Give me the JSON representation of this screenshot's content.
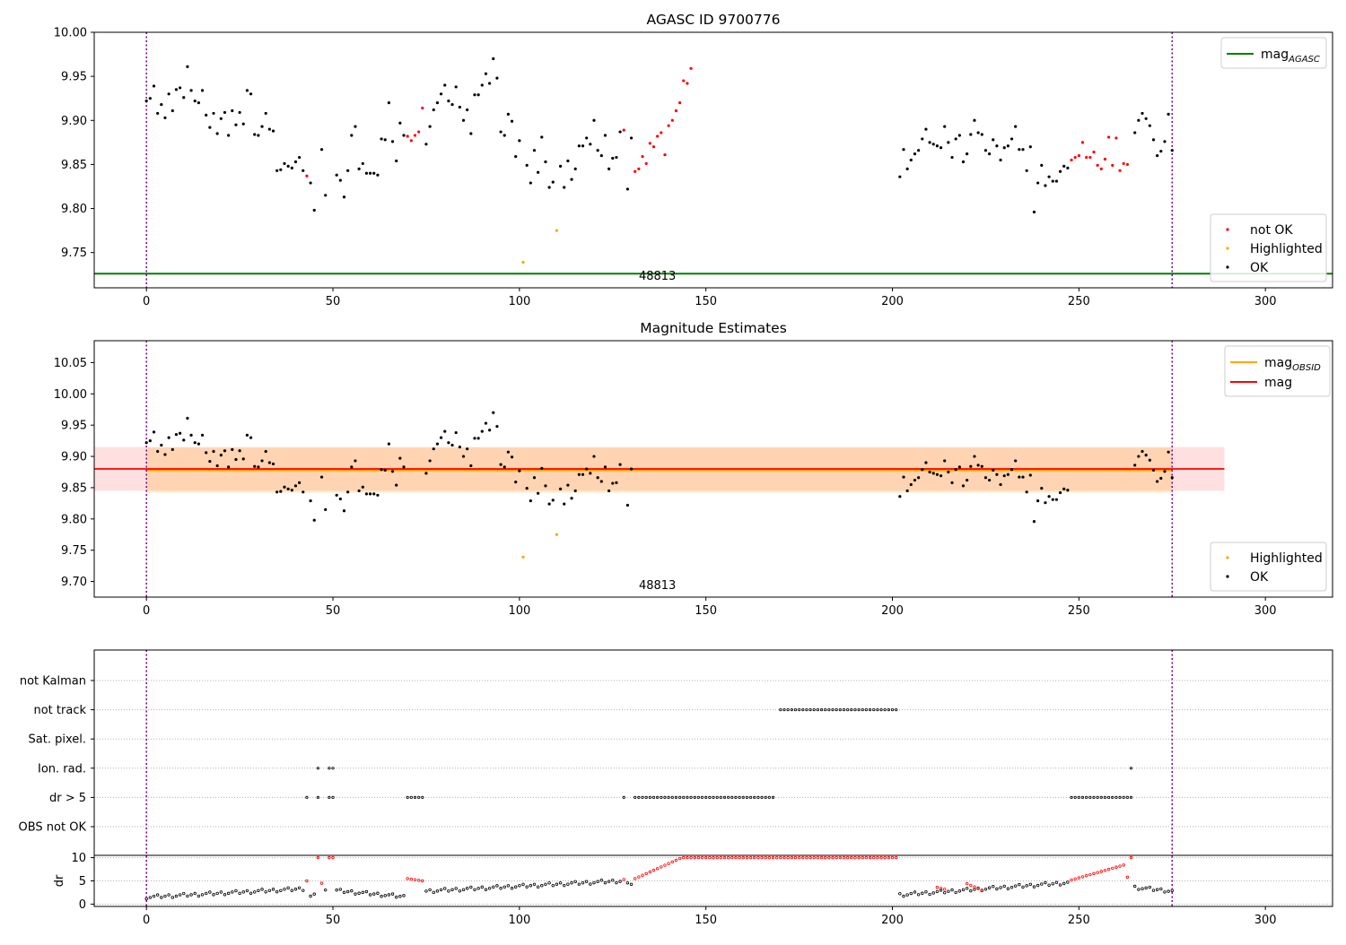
{
  "colors": {
    "ok": "#000000",
    "not_ok": "#ff0000",
    "highlighted": "#ffa500",
    "mag_agasc": "#008000",
    "mag": "#ff0000",
    "mag_obsid": "#ffa500",
    "obsid_boundary": "#800080",
    "band_red": "#ffc0cb",
    "band_orange": "#ffd0b0"
  },
  "chart_data": [
    {
      "type": "scatter",
      "title": "AGASC ID 9700776",
      "xlim": [
        -14,
        318
      ],
      "ylim": [
        9.71,
        10.0
      ],
      "x_ticks": [
        0,
        50,
        100,
        150,
        200,
        250,
        300
      ],
      "y_ticks": [
        9.75,
        9.8,
        9.85,
        9.9,
        9.95,
        10.0
      ],
      "y_tick_labels": [
        "9.75",
        "9.80",
        "9.85",
        "9.90",
        "9.95",
        "10.00"
      ],
      "legend_lines": [
        {
          "label": "mag",
          "sub": "AGASC",
          "color": "#008000"
        }
      ],
      "legend_points": [
        {
          "label": "not OK",
          "color": "#ff0000"
        },
        {
          "label": "Highlighted",
          "color": "#ffa500"
        },
        {
          "label": "OK",
          "color": "#000000"
        }
      ],
      "obsid_label": "48813",
      "obsid_label_x": 137,
      "obsid_bounds": [
        0,
        275
      ],
      "mag_agasc": 9.726,
      "series": [
        {
          "name": "OK",
          "x": [
            0,
            1,
            2,
            3,
            4,
            5,
            6,
            7,
            8,
            9,
            10,
            11,
            12,
            13,
            14,
            15,
            16,
            17,
            18,
            19,
            20,
            21,
            22,
            23,
            24,
            25,
            26,
            27,
            28,
            29,
            30,
            31,
            32,
            33,
            34,
            35,
            36,
            37,
            38,
            39,
            40,
            41,
            42,
            44,
            45,
            47,
            48,
            51,
            52,
            53,
            54,
            55,
            56,
            57,
            58,
            59,
            60,
            61,
            62,
            63,
            64,
            65,
            66,
            67,
            68,
            69,
            75,
            76,
            77,
            78,
            79,
            80,
            81,
            82,
            83,
            84,
            85,
            86,
            87,
            88,
            89,
            90,
            91,
            92,
            93,
            94,
            95,
            96,
            97,
            98,
            99,
            100,
            102,
            103,
            104,
            105,
            106,
            107,
            108,
            109,
            111,
            112,
            113,
            114,
            115,
            116,
            117,
            118,
            119,
            120,
            121,
            122,
            123,
            124,
            125,
            126,
            127,
            129,
            130,
            202,
            203,
            204,
            205,
            206,
            207,
            208,
            209,
            210,
            211,
            212,
            213,
            214,
            215,
            216,
            217,
            218,
            219,
            220,
            221,
            222,
            223,
            224,
            225,
            226,
            227,
            228,
            229,
            230,
            231,
            232,
            233,
            234,
            235,
            236,
            237,
            238,
            239,
            240,
            241,
            242,
            243,
            244,
            245,
            246,
            247,
            265,
            266,
            267,
            268,
            269,
            270,
            271,
            272,
            273,
            274,
            275
          ],
          "y": [
            9.922,
            9.925,
            9.939,
            9.908,
            9.918,
            9.903,
            9.93,
            9.911,
            9.935,
            9.937,
            9.926,
            9.961,
            9.934,
            9.922,
            9.92,
            9.934,
            9.906,
            9.892,
            9.908,
            9.885,
            9.902,
            9.909,
            9.883,
            9.911,
            9.895,
            9.909,
            9.896,
            9.934,
            9.93,
            9.884,
            9.883,
            9.893,
            9.908,
            9.89,
            9.888,
            9.843,
            9.844,
            9.851,
            9.848,
            9.846,
            9.853,
            9.858,
            9.843,
            9.829,
            9.798,
            9.867,
            9.815,
            9.838,
            9.832,
            9.813,
            9.843,
            9.883,
            9.893,
            9.845,
            9.851,
            9.84,
            9.84,
            9.84,
            9.838,
            9.879,
            9.878,
            9.92,
            9.876,
            9.854,
            9.897,
            9.883,
            9.873,
            9.893,
            9.912,
            9.92,
            9.93,
            9.94,
            9.922,
            9.918,
            9.938,
            9.915,
            9.9,
            9.912,
            9.885,
            9.929,
            9.929,
            9.94,
            9.953,
            9.942,
            9.97,
            9.948,
            9.887,
            9.883,
            9.907,
            9.899,
            9.859,
            9.877,
            9.849,
            9.829,
            9.866,
            9.841,
            9.881,
            9.853,
            9.824,
            9.83,
            9.848,
            9.824,
            9.854,
            9.833,
            9.845,
            9.871,
            9.871,
            9.88,
            9.873,
            9.9,
            9.866,
            9.86,
            9.883,
            9.845,
            9.857,
            9.858,
            9.887,
            9.822,
            9.88,
            9.836,
            9.867,
            9.845,
            9.855,
            9.862,
            9.866,
            9.879,
            9.89,
            9.875,
            9.873,
            9.871,
            9.869,
            9.893,
            9.875,
            9.858,
            9.879,
            9.883,
            9.853,
            9.862,
            9.884,
            9.9,
            9.886,
            9.884,
            9.866,
            9.862,
            9.878,
            9.871,
            9.855,
            9.869,
            9.871,
            9.879,
            9.893,
            9.867,
            9.867,
            9.843,
            9.87,
            9.796,
            9.829,
            9.849,
            9.826,
            9.836,
            9.831,
            9.831,
            9.842,
            9.848,
            9.846,
            9.886,
            9.9,
            9.908,
            9.902,
            9.894,
            9.878,
            9.86,
            9.865,
            9.876,
            9.907,
            9.866
          ]
        },
        {
          "name": "not OK",
          "x": [
            43,
            70,
            71,
            72,
            73,
            74,
            128,
            131,
            132,
            133,
            134,
            135,
            136,
            137,
            138,
            139,
            140,
            141,
            142,
            143,
            144,
            145,
            146,
            248,
            249,
            250,
            251,
            252,
            253,
            254,
            255,
            256,
            257,
            258,
            259,
            260,
            261,
            262,
            263
          ],
          "y": [
            9.837,
            9.882,
            9.877,
            9.883,
            9.887,
            9.914,
            9.889,
            9.842,
            9.845,
            9.859,
            9.851,
            9.874,
            9.87,
            9.882,
            9.886,
            9.861,
            9.894,
            9.9,
            9.911,
            9.92,
            9.945,
            9.942,
            9.959,
            9.855,
            9.858,
            9.86,
            9.875,
            9.858,
            9.858,
            9.864,
            9.849,
            9.845,
            9.856,
            9.881,
            9.849,
            9.88,
            9.843,
            9.851,
            9.85
          ]
        },
        {
          "name": "Highlighted",
          "x": [
            101,
            110
          ],
          "y": [
            9.739,
            9.775
          ]
        }
      ]
    },
    {
      "type": "scatter",
      "title": "Magnitude Estimates",
      "xlim": [
        -14,
        318
      ],
      "ylim": [
        9.675,
        10.085
      ],
      "x_ticks": [
        0,
        50,
        100,
        150,
        200,
        250,
        300
      ],
      "y_ticks": [
        9.7,
        9.75,
        9.8,
        9.85,
        9.9,
        9.95,
        10.0,
        10.05
      ],
      "y_tick_labels": [
        "9.70",
        "9.75",
        "9.80",
        "9.85",
        "9.90",
        "9.95",
        "10.00",
        "10.05"
      ],
      "legend_lines": [
        {
          "label": "mag",
          "sub": "OBSID",
          "color": "#ffa500"
        },
        {
          "label": "mag",
          "sub": "",
          "color": "#ff0000"
        }
      ],
      "legend_points": [
        {
          "label": "Highlighted",
          "color": "#ffa500"
        },
        {
          "label": "OK",
          "color": "#000000"
        }
      ],
      "obsid_label": "48813",
      "obsid_label_x": 137,
      "obsid_bounds": [
        0,
        275
      ],
      "mag": 9.88,
      "mag_band": [
        9.845,
        9.915
      ],
      "mag_band_xrange": [
        -14,
        289
      ],
      "mag_obsid": 9.878,
      "mag_obsid_band": [
        9.842,
        9.914
      ],
      "mag_obsid_xrange": [
        0,
        275
      ],
      "series_from_panel": 0,
      "series_names": [
        "OK",
        "Highlighted"
      ]
    },
    {
      "type": "scatter",
      "xlim": [
        -14,
        318
      ],
      "x_ticks": [
        0,
        50,
        100,
        150,
        200,
        250,
        300
      ],
      "flag_rows": [
        "not Kalman",
        "not track",
        "Sat. pixel.",
        "Ion. rad.",
        "dr > 5",
        "OBS not OK"
      ],
      "flags": {
        "not track": [
          [
            170,
            201
          ]
        ],
        "Ion. rad.": [
          [
            46,
            46
          ],
          [
            49,
            50
          ],
          [
            264,
            264
          ]
        ],
        "dr > 5": [
          [
            43,
            43
          ],
          [
            46,
            46
          ],
          [
            49,
            50
          ],
          [
            70,
            74
          ],
          [
            128,
            128
          ],
          [
            131,
            168
          ],
          [
            248,
            264
          ]
        ]
      },
      "dr_ylabel": "dr",
      "dr_ylim": [
        -0.5,
        10.5
      ],
      "dr_ticks": [
        0,
        5,
        10
      ],
      "dr_ok_segments": [
        {
          "x0": 0,
          "x1": 42,
          "y0": 1.5,
          "y1": 3.3
        },
        {
          "x0": 44,
          "x1": 45,
          "y0": 1.6,
          "y1": 1.8
        },
        {
          "x0": 48,
          "x1": 48,
          "y0": 2.8,
          "y1": 2.8
        },
        {
          "x0": 51,
          "x1": 69,
          "y0": 2.9,
          "y1": 1.6
        },
        {
          "x0": 75,
          "x1": 127,
          "y0": 2.8,
          "y1": 5.0
        },
        {
          "x0": 129,
          "x1": 130,
          "y0": 4.2,
          "y1": 4.5
        },
        {
          "x0": 202,
          "x1": 247,
          "y0": 2.0,
          "y1": 4.6
        },
        {
          "x0": 265,
          "x1": 275,
          "y0": 3.6,
          "y1": 2.8
        }
      ],
      "dr_notok_segments": [
        {
          "x0": 43,
          "x1": 43,
          "y0": 5.0,
          "y1": 5.0
        },
        {
          "x0": 46,
          "x1": 46,
          "y0": 10.0,
          "y1": 10.0
        },
        {
          "x0": 47,
          "x1": 47,
          "y0": 4.5,
          "y1": 4.5
        },
        {
          "x0": 49,
          "x1": 50,
          "y0": 10.0,
          "y1": 10.0
        },
        {
          "x0": 70,
          "x1": 74,
          "y0": 5.5,
          "y1": 5.0
        },
        {
          "x0": 128,
          "x1": 128,
          "y0": 5.3,
          "y1": 5.3
        },
        {
          "x0": 131,
          "x1": 143,
          "y0": 5.5,
          "y1": 9.8
        },
        {
          "x0": 144,
          "x1": 201,
          "y0": 10.0,
          "y1": 10.0
        },
        {
          "x0": 212,
          "x1": 214,
          "y0": 3.6,
          "y1": 3.2
        },
        {
          "x0": 220,
          "x1": 224,
          "y0": 4.4,
          "y1": 3.0
        },
        {
          "x0": 248,
          "x1": 262,
          "y0": 5.2,
          "y1": 8.4
        },
        {
          "x0": 263,
          "x1": 263,
          "y0": 5.8,
          "y1": 5.8
        },
        {
          "x0": 264,
          "x1": 264,
          "y0": 10.0,
          "y1": 10.0
        }
      ]
    }
  ]
}
